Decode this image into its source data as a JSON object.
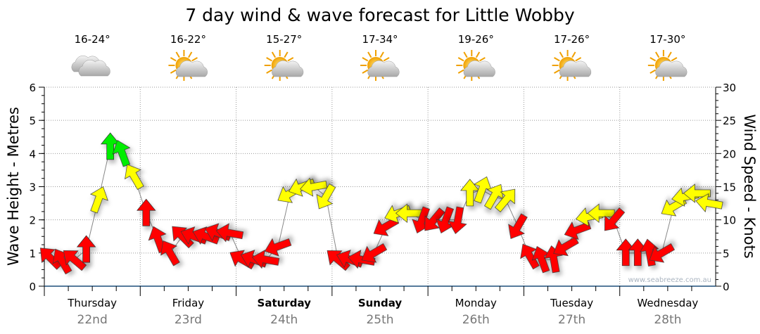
{
  "chart_data": {
    "type": "scatter",
    "title": "7 day wind & wave forecast for Little Wobby",
    "ylabel": "Wave Height - Metres",
    "y2label": "Wind Speed - Knots",
    "ylim": [
      0,
      6
    ],
    "y2lim": [
      0,
      30
    ],
    "yticks": [
      "0",
      "1",
      "2",
      "3",
      "4",
      "5",
      "6"
    ],
    "y2ticks": [
      "0",
      "5",
      "10",
      "15",
      "20",
      "25",
      "30"
    ],
    "watermark": "www.seabreeze.com.au",
    "grid": true,
    "days": [
      {
        "name": "Thursday",
        "date": "22nd",
        "temp": "16-24°",
        "icon": "cloudy-icon",
        "bold": false
      },
      {
        "name": "Friday",
        "date": "23rd",
        "temp": "16-22°",
        "icon": "partly-cloudy-icon",
        "bold": false
      },
      {
        "name": "Saturday",
        "date": "24th",
        "temp": "15-27°",
        "icon": "partly-cloudy-icon",
        "bold": true
      },
      {
        "name": "Sunday",
        "date": "25th",
        "temp": "17-34°",
        "icon": "partly-cloudy-icon",
        "bold": true
      },
      {
        "name": "Monday",
        "date": "26th",
        "temp": "19-26°",
        "icon": "partly-cloudy-icon",
        "bold": false
      },
      {
        "name": "Tuesday",
        "date": "27th",
        "temp": "17-26°",
        "icon": "partly-cloudy-icon",
        "bold": false
      },
      {
        "name": "Wednesday",
        "date": "28th",
        "temp": "17-30°",
        "icon": "partly-cloudy-icon",
        "bold": false
      }
    ],
    "hours_per_point": 3,
    "wave_height_m": [
      0.85,
      0.75,
      0.8,
      1.1,
      2.6,
      4.2,
      4.0,
      3.3,
      2.2,
      1.4,
      1.0,
      1.5,
      1.5,
      1.5,
      1.6,
      1.6,
      0.8,
      0.8,
      0.8,
      1.2,
      2.8,
      3.0,
      3.0,
      2.7,
      0.8,
      0.8,
      0.8,
      1.0,
      1.8,
      2.2,
      2.2,
      2.0,
      2.0,
      2.0,
      2.0,
      2.8,
      2.9,
      2.7,
      2.6,
      1.8,
      0.9,
      0.8,
      0.8,
      1.2,
      1.7,
      2.1,
      2.2,
      2.0,
      1.0,
      1.0,
      1.0,
      1.0,
      2.4,
      2.7,
      2.8,
      2.5
    ],
    "wind_speed_kts": [
      7,
      7,
      7,
      8,
      14,
      21,
      21,
      15,
      8,
      8,
      8,
      8,
      8,
      8,
      8,
      8,
      7,
      7,
      7,
      8,
      14,
      15,
      14,
      13,
      7,
      7,
      7,
      8,
      9,
      12,
      12,
      9,
      9,
      9,
      9,
      13,
      14,
      13,
      12,
      9,
      7,
      7,
      7,
      8,
      9,
      11,
      11,
      9,
      8,
      8,
      8,
      8,
      12,
      13,
      13,
      12
    ],
    "wind_from_bearing_deg": [
      135,
      150,
      130,
      180,
      200,
      180,
      160,
      150,
      180,
      160,
      150,
      135,
      110,
      110,
      110,
      100,
      120,
      110,
      100,
      70,
      60,
      70,
      80,
      30,
      130,
      110,
      100,
      60,
      60,
      70,
      90,
      20,
      40,
      20,
      10,
      180,
      200,
      210,
      220,
      30,
      150,
      160,
      170,
      60,
      70,
      80,
      90,
      40,
      180,
      180,
      170,
      60,
      60,
      80,
      90,
      100
    ],
    "speed_colors": {
      "light": "#ff0000",
      "moderate": "#ffff00",
      "strong": "#00ee00"
    }
  }
}
